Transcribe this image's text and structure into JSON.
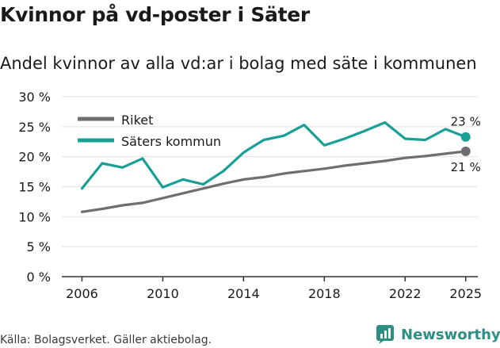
{
  "header": {
    "title": "Kvinnor på vd-poster i Säter",
    "subtitle": "Andel kvinnor av alla vd:ar i bolag med säte i kommunen"
  },
  "footer": {
    "source": "Källa: Bolagsverket. Gäller aktiebolag.",
    "brand": "Newsworthy"
  },
  "colors": {
    "riket": "#6e6e73",
    "sater": "#19a096",
    "axis": "#333333",
    "grid": "#e0e0e0",
    "brand": "#2b8f84"
  },
  "chart_data": {
    "type": "line",
    "title": "Kvinnor på vd-poster i Säter",
    "subtitle": "Andel kvinnor av alla vd:ar i bolag med säte i kommunen",
    "xlabel": "",
    "ylabel": "",
    "x": [
      2006,
      2007,
      2008,
      2009,
      2010,
      2011,
      2012,
      2013,
      2014,
      2015,
      2016,
      2017,
      2018,
      2019,
      2020,
      2021,
      2022,
      2023,
      2024,
      2025
    ],
    "xlim": [
      2005,
      2025.6
    ],
    "ylim": [
      0,
      30
    ],
    "xticks": [
      2006,
      2010,
      2014,
      2018,
      2022,
      2025
    ],
    "yticks": [
      0,
      5,
      10,
      15,
      20,
      25,
      30
    ],
    "ytick_labels": [
      "0 %",
      "5 %",
      "10 %",
      "15 %",
      "20 %",
      "25 %",
      "30 %"
    ],
    "legend_position": "top-left",
    "series": [
      {
        "name": "Riket",
        "color": "#6e6e73",
        "values": [
          10.8,
          11.3,
          11.9,
          12.3,
          13.1,
          13.9,
          14.7,
          15.5,
          16.2,
          16.6,
          17.2,
          17.6,
          18.0,
          18.5,
          18.9,
          19.3,
          19.8,
          20.1,
          20.5,
          20.9
        ],
        "end_label": "21 %"
      },
      {
        "name": "Säters kommun",
        "color": "#19a096",
        "values": [
          14.7,
          18.9,
          18.2,
          19.7,
          14.9,
          16.2,
          15.4,
          17.6,
          20.7,
          22.8,
          23.5,
          25.3,
          21.9,
          23.0,
          24.3,
          25.7,
          23.0,
          22.8,
          24.6,
          23.3
        ],
        "end_label": "23 %"
      }
    ]
  }
}
